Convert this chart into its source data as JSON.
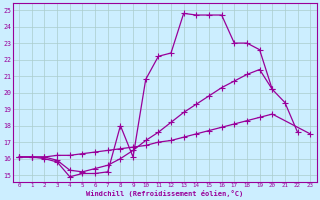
{
  "xlabel": "Windchill (Refroidissement éolien,°C)",
  "bg_color": "#cceeff",
  "grid_color": "#aacccc",
  "line_color": "#990099",
  "xlim": [
    -0.5,
    23.5
  ],
  "ylim": [
    14.6,
    25.4
  ],
  "xticks": [
    0,
    1,
    2,
    3,
    4,
    5,
    6,
    7,
    8,
    9,
    10,
    11,
    12,
    13,
    14,
    15,
    16,
    17,
    18,
    19,
    20,
    21,
    22,
    23
  ],
  "yticks": [
    15,
    16,
    17,
    18,
    19,
    20,
    21,
    22,
    23,
    24,
    25
  ],
  "curve1_x": [
    0,
    1,
    2,
    3,
    4,
    5,
    6,
    7,
    8,
    9,
    10,
    11,
    12,
    13,
    14,
    15,
    16,
    17,
    18,
    19,
    20,
    21,
    22
  ],
  "curve1_y": [
    16.1,
    16.1,
    16.0,
    15.8,
    14.9,
    15.1,
    15.1,
    15.2,
    18.0,
    16.1,
    20.8,
    22.2,
    22.4,
    24.8,
    24.7,
    24.7,
    24.7,
    23.0,
    23.0,
    22.6,
    20.2,
    19.4,
    17.6
  ],
  "curve2_x": [
    0,
    1,
    2,
    3,
    4,
    5,
    6,
    7,
    8,
    9,
    10,
    11,
    12,
    13,
    14,
    15,
    16,
    17,
    18,
    19,
    20,
    21,
    22
  ],
  "curve2_y": [
    16.1,
    16.1,
    16.1,
    15.9,
    15.3,
    15.2,
    15.4,
    15.6,
    16.0,
    16.5,
    17.1,
    17.6,
    18.2,
    18.8,
    19.3,
    19.8,
    20.3,
    20.7,
    21.1,
    21.4,
    20.2,
    null,
    null
  ],
  "curve3_x": [
    0,
    1,
    2,
    3,
    4,
    5,
    6,
    7,
    8,
    9,
    10,
    11,
    12,
    13,
    14,
    15,
    16,
    17,
    18,
    19,
    20,
    21,
    22,
    23
  ],
  "curve3_y": [
    16.1,
    16.1,
    16.1,
    16.2,
    16.2,
    16.3,
    16.4,
    16.5,
    16.6,
    16.7,
    16.8,
    17.0,
    17.1,
    17.3,
    17.5,
    17.7,
    17.9,
    18.1,
    18.3,
    18.5,
    18.7,
    null,
    null,
    17.5
  ]
}
